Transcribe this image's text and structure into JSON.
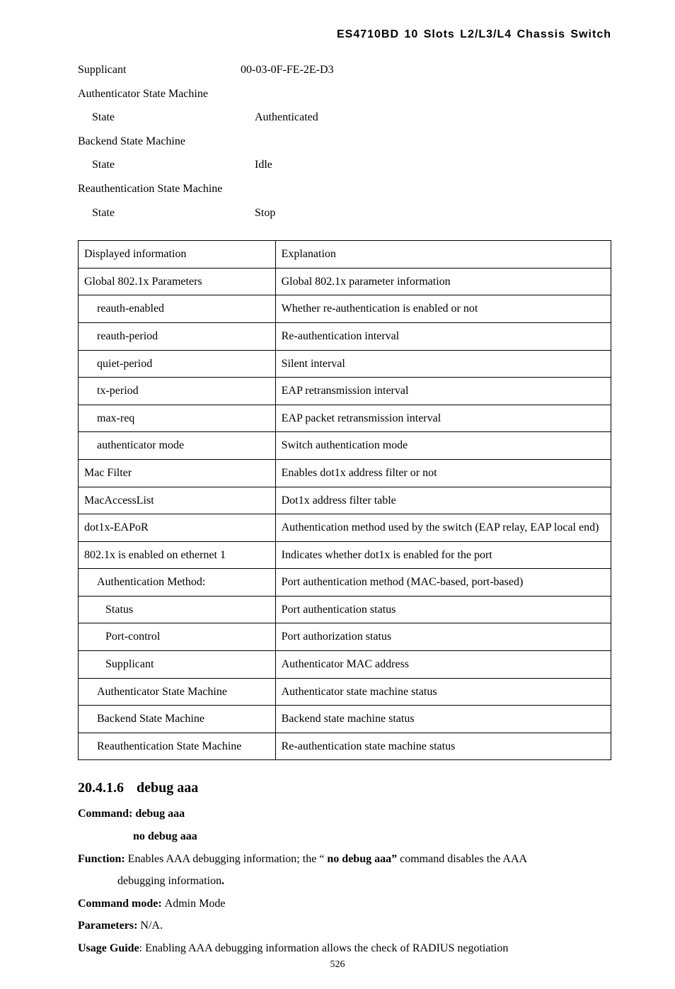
{
  "header": {
    "title": "ES4710BD 10 Slots L2/L3/L4 Chassis Switch"
  },
  "state_lines": [
    {
      "key": "Supplicant",
      "keyClass": "state-key-top",
      "val": "00-03-0F-FE-2E-D3"
    },
    {
      "key": "",
      "keyClass": "state-key-top",
      "val": ""
    },
    {
      "key": "Authenticator State Machine",
      "keyClass": "state-key-top",
      "val": ""
    },
    {
      "key": "State",
      "keyClass": "state-key",
      "val": "Authenticated"
    },
    {
      "key": "Backend State Machine",
      "keyClass": "state-key-top",
      "val": ""
    },
    {
      "key": "State",
      "keyClass": "state-key",
      "val": "Idle"
    },
    {
      "key": "Reauthentication State Machine",
      "keyClass": "state-key-top",
      "val": ""
    },
    {
      "key": "State",
      "keyClass": "state-key",
      "val": "Stop"
    }
  ],
  "table": {
    "rows": [
      {
        "left": "Displayed information",
        "right": "Explanation",
        "indent": 0
      },
      {
        "left": "Global 802.1x Parameters",
        "right": "Global 802.1x parameter information",
        "indent": 0
      },
      {
        "left": "reauth-enabled",
        "right": "Whether re-authentication is enabled or not",
        "indent": 1
      },
      {
        "left": "reauth-period",
        "right": "Re-authentication interval",
        "indent": 1
      },
      {
        "left": "quiet-period",
        "right": "Silent interval",
        "indent": 1
      },
      {
        "left": "tx-period",
        "right": "EAP retransmission interval",
        "indent": 1
      },
      {
        "left": "max-req",
        "right": "EAP packet retransmission interval",
        "indent": 1
      },
      {
        "left": "authenticator mode",
        "right": "Switch authentication mode",
        "indent": 1
      },
      {
        "left": "Mac Filter",
        "right": "Enables dot1x address filter or not",
        "indent": 0
      },
      {
        "left": "MacAccessList",
        "right": "Dot1x address filter table",
        "indent": 0
      },
      {
        "left": "dot1x-EAPoR",
        "right": "Authentication method used by the switch (EAP relay, EAP local end)",
        "indent": 0
      },
      {
        "left": "802.1x is enabled on ethernet 1",
        "right": "Indicates whether dot1x is enabled for the port",
        "indent": 0
      },
      {
        "left": "Authentication Method:",
        "right": "Port authentication method (MAC-based, port-based)",
        "indent": 1
      },
      {
        "left": "Status",
        "right": "Port authentication status",
        "indent": 2
      },
      {
        "left": "Port-control",
        "right": "Port authorization status",
        "indent": 2
      },
      {
        "left": "Supplicant",
        "right": "Authenticator MAC address",
        "indent": 2
      },
      {
        "left": "Authenticator State Machine",
        "right": "Authenticator state machine status",
        "indent": 1
      },
      {
        "left": "Backend State Machine",
        "right": "Backend state machine status",
        "indent": 1
      },
      {
        "left": "Reauthentication State Machine",
        "right": "Re-authentication state machine status",
        "indent": 1
      }
    ]
  },
  "section": {
    "number": "20.4.1.6",
    "title": "debug aaa",
    "command_label": "Command: ",
    "command_val": "debug aaa",
    "no_command": "no debug aaa",
    "function_label": "Function: ",
    "function_text_a": "Enables AAA debugging information; the “ ",
    "function_bold": "no debug aaa”",
    "function_text_b": " command disables the AAA",
    "function_cont": "debugging information",
    "function_period": ".",
    "mode_label": "Command mode: ",
    "mode_val": "Admin Mode",
    "params_label": "Parameters: ",
    "params_val": "N/A.",
    "usage_label": "Usage Guide",
    "usage_text": ": Enabling AAA debugging information allows the check of RADIUS negotiation"
  },
  "page_number": "526"
}
